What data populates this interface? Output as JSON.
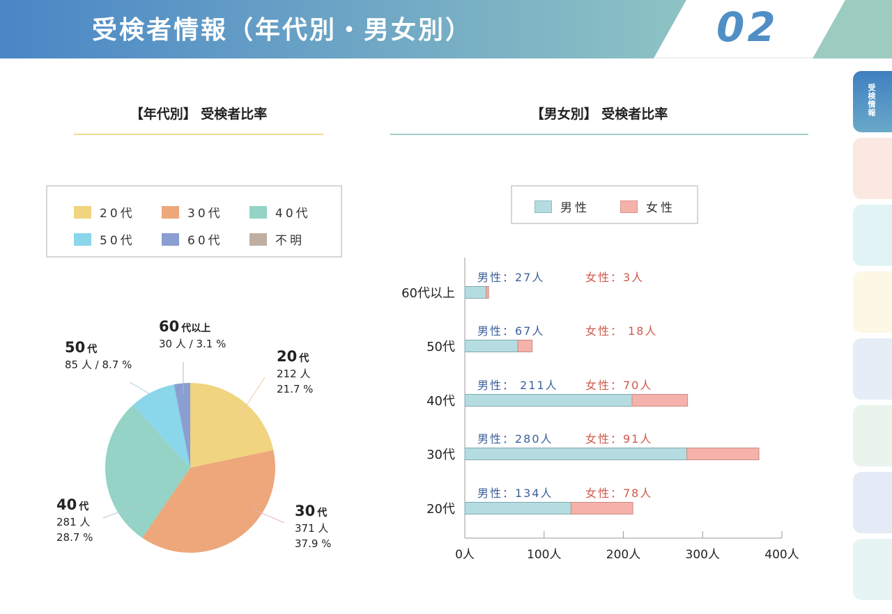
{
  "header": {
    "title": "受検者情報（年代別・男女別）",
    "page_number": "02",
    "colors": {
      "gradient_start": "#4a86c6",
      "gradient_end": "#8ec3c4",
      "accent_right": "#9ccbc0"
    }
  },
  "side_nav": {
    "tabs": [
      {
        "label": "受検情報",
        "color": "#4f8bc4",
        "active": true
      },
      {
        "label": "",
        "color": "#fbe8e2",
        "active": false
      },
      {
        "label": "",
        "color": "#e2f3f5",
        "active": false
      },
      {
        "label": "",
        "color": "#fdf8e6",
        "active": false
      },
      {
        "label": "",
        "color": "#e5edf7",
        "active": false
      },
      {
        "label": "",
        "color": "#e8f4ec",
        "active": false
      },
      {
        "label": "",
        "color": "#e4ebf6",
        "active": false
      },
      {
        "label": "",
        "color": "#e6f4f3",
        "active": false
      }
    ]
  },
  "age_section": {
    "title": "【年代別】 受検者比率",
    "rule_color": "#f0d890",
    "legend": [
      {
        "label": "20代",
        "color": "#f0d47f"
      },
      {
        "label": "30代",
        "color": "#eda77b"
      },
      {
        "label": "40代",
        "color": "#94d3c6"
      },
      {
        "label": "50代",
        "color": "#8ad6eb"
      },
      {
        "label": "60代",
        "color": "#8b9ed2"
      },
      {
        "label": "不明",
        "color": "#bfafa2"
      }
    ],
    "pie_labels": {
      "s20": {
        "age": "20",
        "suffix": "代",
        "count": "212 人",
        "pct": "21.7 %"
      },
      "s30": {
        "age": "30",
        "suffix": "代",
        "count": "371 人",
        "pct": "37.9 %"
      },
      "s40": {
        "age": "40",
        "suffix": "代",
        "count": "281 人",
        "pct": "28.7 %"
      },
      "s50": {
        "age": "50",
        "suffix": "代",
        "line2": "85 人 / 8.7 %"
      },
      "s60": {
        "age": "60",
        "suffix": "代以上",
        "line2": "30 人 / 3.1 %"
      }
    }
  },
  "gender_section": {
    "title": "【男女別】 受検者比率",
    "rule_color": "#9fd0c8",
    "legend": [
      {
        "label": "男性",
        "color": "#b5dde1"
      },
      {
        "label": "女性",
        "color": "#f5b2aa"
      }
    ],
    "label_colors": {
      "male": "#3c5f9b",
      "female": "#d0584a"
    }
  },
  "chart_data": [
    {
      "type": "pie",
      "title": "【年代別】 受検者比率",
      "categories": [
        "20代",
        "30代",
        "40代",
        "50代",
        "60代以上"
      ],
      "values": [
        212,
        371,
        281,
        85,
        30
      ],
      "percents": [
        21.7,
        37.9,
        28.7,
        8.7,
        3.1
      ],
      "colors": [
        "#f0d47f",
        "#eda77b",
        "#94d3c6",
        "#8ad6eb",
        "#8b9ed2"
      ]
    },
    {
      "type": "bar",
      "orientation": "horizontal",
      "stacked": true,
      "title": "【男女別】 受検者比率",
      "categories": [
        "60代以上",
        "50代",
        "40代",
        "30代",
        "20代"
      ],
      "series": [
        {
          "name": "男性",
          "values": [
            27,
            67,
            211,
            280,
            134
          ],
          "color": "#b5dde1"
        },
        {
          "name": "女性",
          "values": [
            3,
            18,
            70,
            91,
            78
          ],
          "color": "#f5b2aa"
        }
      ],
      "bar_labels": {
        "male": [
          "男性：27人",
          "男性：67人",
          "男性： 211人",
          "男性：280人",
          "男性：134人"
        ],
        "female": [
          "女性：3人",
          "女性： 18人",
          "女性：70人",
          "女性：91人",
          "女性：78人"
        ]
      },
      "xlim": [
        0,
        400
      ],
      "xticks": [
        0,
        100,
        200,
        300,
        400
      ],
      "xtick_labels": [
        "0人",
        "100人",
        "200人",
        "300人",
        "400人"
      ]
    }
  ]
}
